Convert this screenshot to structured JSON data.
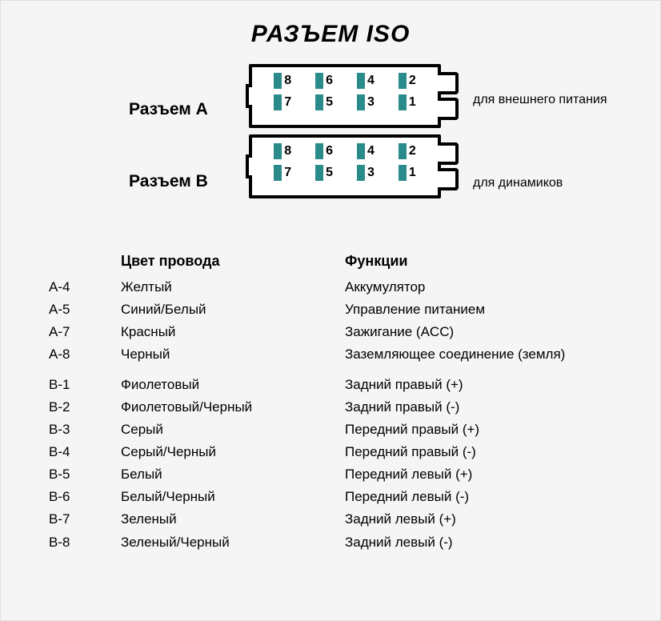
{
  "title": "РАЗЪЕМ ISO",
  "connectorA": {
    "label": "Разъем А",
    "desc": "для внешнего питания",
    "pinsTop": [
      "8",
      "6",
      "4",
      "2"
    ],
    "pinsBottom": [
      "7",
      "5",
      "3",
      "1"
    ]
  },
  "connectorB": {
    "label": "Разъем В",
    "desc": "для динамиков",
    "pinsTop": [
      "8",
      "6",
      "4",
      "2"
    ],
    "pinsBottom": [
      "7",
      "5",
      "3",
      "1"
    ]
  },
  "pinColor": "#2b8a8a",
  "columns": {
    "color": "Цвет провода",
    "func": "Функции"
  },
  "groupA": [
    {
      "pin": "A-4",
      "color": "Желтый",
      "func": "Аккумулятор"
    },
    {
      "pin": "A-5",
      "color": "Синий/Белый",
      "func": "Управление питанием"
    },
    {
      "pin": "A-7",
      "color": "Красный",
      "func": "Зажигание (ACC)"
    },
    {
      "pin": "A-8",
      "color": "Черный",
      "func": "Заземляющее соединение (земля)"
    }
  ],
  "groupB": [
    {
      "pin": "B-1",
      "color": "Фиолетовый",
      "func": "Задний правый (+)"
    },
    {
      "pin": "B-2",
      "color": "Фиолетовый/Черный",
      "func": "Задний правый (-)"
    },
    {
      "pin": "B-3",
      "color": "Серый",
      "func": "Передний правый (+)"
    },
    {
      "pin": "B-4",
      "color": "Серый/Черный",
      "func": "Передний правый (-)"
    },
    {
      "pin": "B-5",
      "color": "Белый",
      "func": "Передний левый (+)"
    },
    {
      "pin": "B-6",
      "color": "Белый/Черный",
      "func": "Передний левый (-)"
    },
    {
      "pin": "B-7",
      "color": "Зеленый",
      "func": "Задний левый (+)"
    },
    {
      "pin": "B-8",
      "color": "Зеленый/Черный",
      "func": "Задний левый (-)"
    }
  ]
}
